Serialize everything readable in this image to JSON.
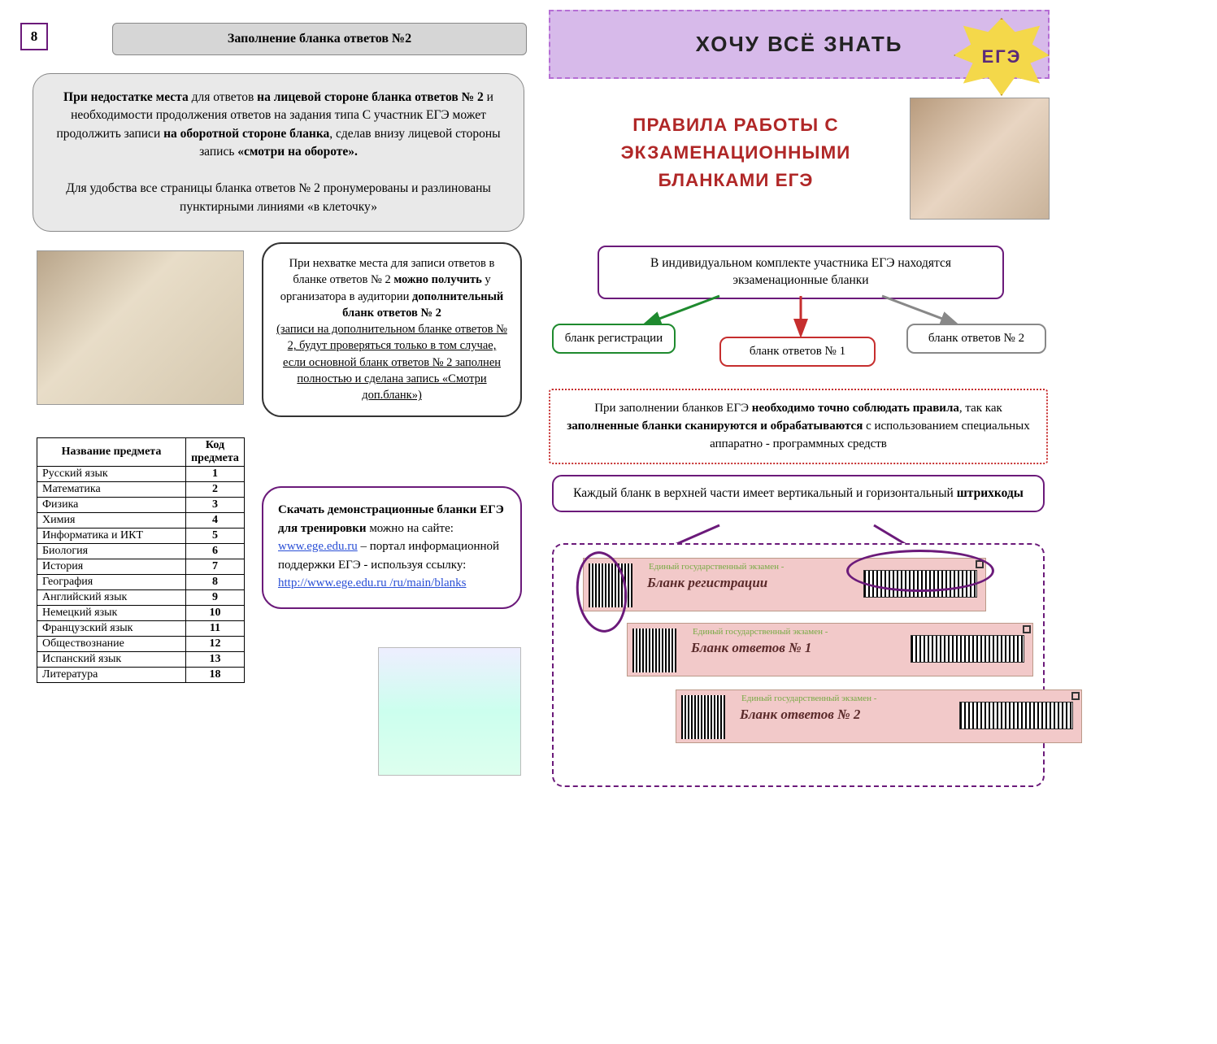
{
  "page_number": "8",
  "left": {
    "title": "Заполнение бланка ответов №2",
    "info1_html": "<b>При недостатке места</b> для ответов <b>на лицевой стороне бланка ответов № 2</b> и необходимости продолжения ответов на задания типа С участник ЕГЭ может продолжить записи <b>на оборотной стороне бланка</b>, сделав внизу лицевой стороны запись <b>«смотри на обороте».</b><br><br>Для удобства все страницы бланка ответов № 2 пронумерованы и разлинованы пунктирными линиями «в клеточку»",
    "info2_html": "При нехватке места для записи ответов в бланке ответов № 2 <b>можно получить</b> у организатора в аудитории <b>дополнительный бланк ответов № 2</b><br><u>(записи на дополнительном бланке ответов № 2, будут проверяться только в том случае, если основной бланк ответов № 2 заполнен полностью и сделана запись «Смотри доп.бланк»)</u>",
    "download_html": "<b>Скачать демонстрационные бланки ЕГЭ для тренировки</b> можно на сайте:  <a>www.ege.edu.ru</a> – портал информационной поддержки   ЕГЭ - используя ссылку: <a>http://www.ege.edu.ru /ru/main/blanks</a>",
    "table": {
      "columns": [
        "Название предмета",
        "Код предмета"
      ],
      "rows": [
        [
          "Русский язык",
          "1"
        ],
        [
          "Математика",
          "2"
        ],
        [
          "Физика",
          "3"
        ],
        [
          "Химия",
          "4"
        ],
        [
          "Информатика и ИКТ",
          "5"
        ],
        [
          "Биология",
          "6"
        ],
        [
          "История",
          "7"
        ],
        [
          "География",
          "8"
        ],
        [
          "Английский язык",
          "9"
        ],
        [
          "Немецкий язык",
          "10"
        ],
        [
          "Французский язык",
          "11"
        ],
        [
          "Обществознание",
          "12"
        ],
        [
          "Испанский язык",
          "13"
        ],
        [
          "Литература",
          "18"
        ]
      ]
    }
  },
  "right": {
    "banner": "ХОЧУ  ВСЁ  ЗНАТЬ",
    "badge": "ЕГЭ",
    "main_title": "ПРАВИЛА  РАБОТЫ  С  ЭКЗАМЕНАЦИОННЫМИ  БЛАНКАМИ  ЕГЭ",
    "flow_top": "В индивидуальном комплекте участника ЕГЭ находятся экзаменационные бланки",
    "flow_green": "бланк регистрации",
    "flow_red": "бланк ответов № 1",
    "flow_gray": "бланк ответов № 2",
    "rules_html": "При заполнении бланков ЕГЭ <b>необходимо точно соблюдать правила</b>, так как <b>заполненные бланки сканируются и обрабатываются</b> с использованием специальных аппаратно - программных средств",
    "barcode_title_html": "Каждый бланк в верхней части имеет вертикальный и горизонтальный <b>штрихкоды</b>",
    "forms": {
      "hdr": "Единый государственный экзамен -",
      "f1": "Бланк регистрации",
      "f2": "Бланк ответов № 1",
      "f3": "Бланк ответов № 2"
    }
  },
  "colors": {
    "purple": "#6b1a7a",
    "lav": "#d7baea",
    "red": "#b02727",
    "green": "#1e8a2e",
    "boxred": "#c62e2e",
    "gray": "#888888"
  }
}
